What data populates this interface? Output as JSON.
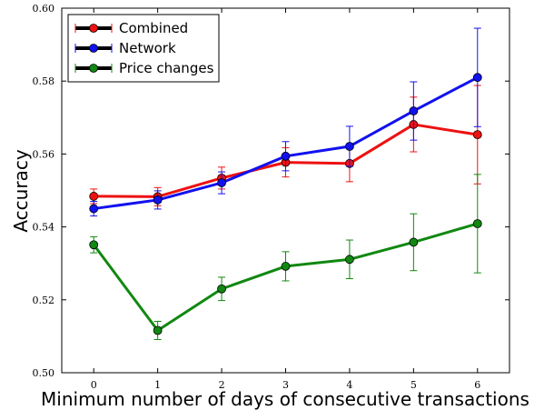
{
  "chart_data": {
    "type": "line",
    "xlabel": "Minimum number of days of consecutive transactions",
    "ylabel": "Accuracy",
    "xlim": [
      -0.5,
      6.5
    ],
    "ylim": [
      0.5,
      0.6
    ],
    "x": [
      0,
      1,
      2,
      3,
      4,
      5,
      6
    ],
    "xticks": [
      "0",
      "1",
      "2",
      "3",
      "4",
      "5",
      "6"
    ],
    "yticks": [
      0.5,
      0.52,
      0.54,
      0.56,
      0.58,
      0.6
    ],
    "ytick_labels": [
      "0.50",
      "0.52",
      "0.54",
      "0.56",
      "0.58",
      "0.60"
    ],
    "grid": false,
    "legend_position": "top-left",
    "series": [
      {
        "name": "Combined",
        "color": "#ee1111",
        "values": [
          0.5484,
          0.5483,
          0.5534,
          0.5577,
          0.5574,
          0.5681,
          0.5653
        ],
        "errors": [
          0.002,
          0.0025,
          0.003,
          0.004,
          0.005,
          0.0075,
          0.0135
        ]
      },
      {
        "name": "Network",
        "color": "#1111ee",
        "values": [
          0.545,
          0.5474,
          0.5521,
          0.5594,
          0.5621,
          0.5718,
          0.581
        ],
        "errors": [
          0.002,
          0.0025,
          0.003,
          0.004,
          0.0055,
          0.008,
          0.0135
        ]
      },
      {
        "name": "Price changes",
        "color": "#118811",
        "values": [
          0.5351,
          0.5116,
          0.523,
          0.5292,
          0.5311,
          0.5358,
          0.5409
        ],
        "errors": [
          0.0022,
          0.0025,
          0.0032,
          0.004,
          0.0053,
          0.0078,
          0.0135
        ]
      }
    ]
  }
}
